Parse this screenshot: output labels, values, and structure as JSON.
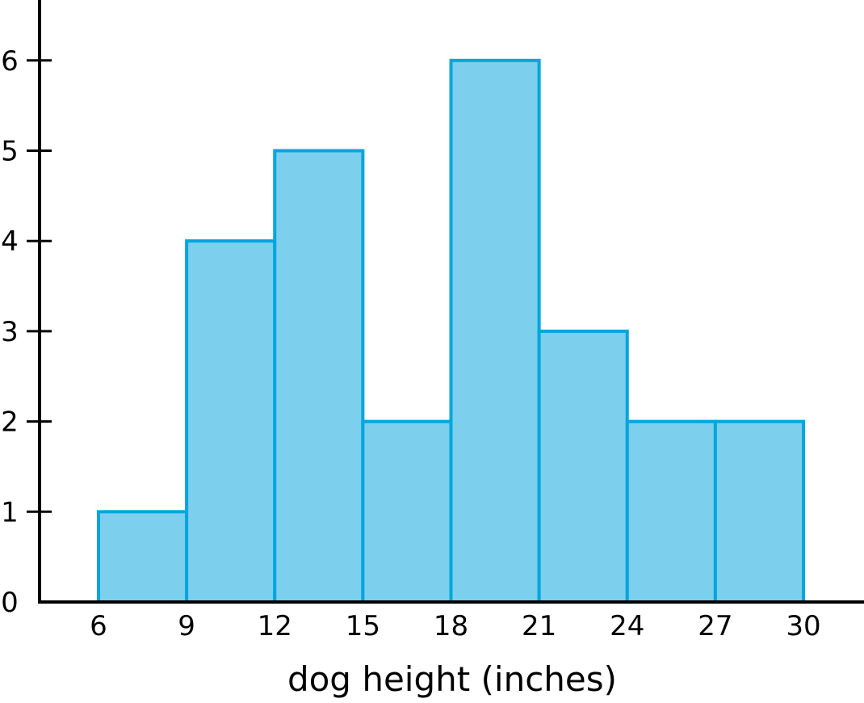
{
  "chart_data": {
    "type": "bar",
    "subtype": "histogram",
    "title": "",
    "xlabel": "dog height (inches)",
    "ylabel": "",
    "bins": [
      [
        6,
        9
      ],
      [
        9,
        12
      ],
      [
        12,
        15
      ],
      [
        15,
        18
      ],
      [
        18,
        21
      ],
      [
        21,
        24
      ],
      [
        24,
        27
      ],
      [
        27,
        30
      ]
    ],
    "values": [
      1,
      4,
      5,
      2,
      6,
      3,
      2,
      2
    ],
    "x_ticks": [
      6,
      9,
      12,
      15,
      18,
      21,
      24,
      27,
      30
    ],
    "y_ticks": [
      0,
      1,
      2,
      3,
      4,
      5,
      6
    ],
    "xlim": [
      4.3,
      32
    ],
    "ylim": [
      0,
      6.7
    ],
    "grid": false,
    "colors": {
      "fill": "#7dcfee",
      "stroke": "#00a6dd",
      "axis": "#000000"
    }
  }
}
